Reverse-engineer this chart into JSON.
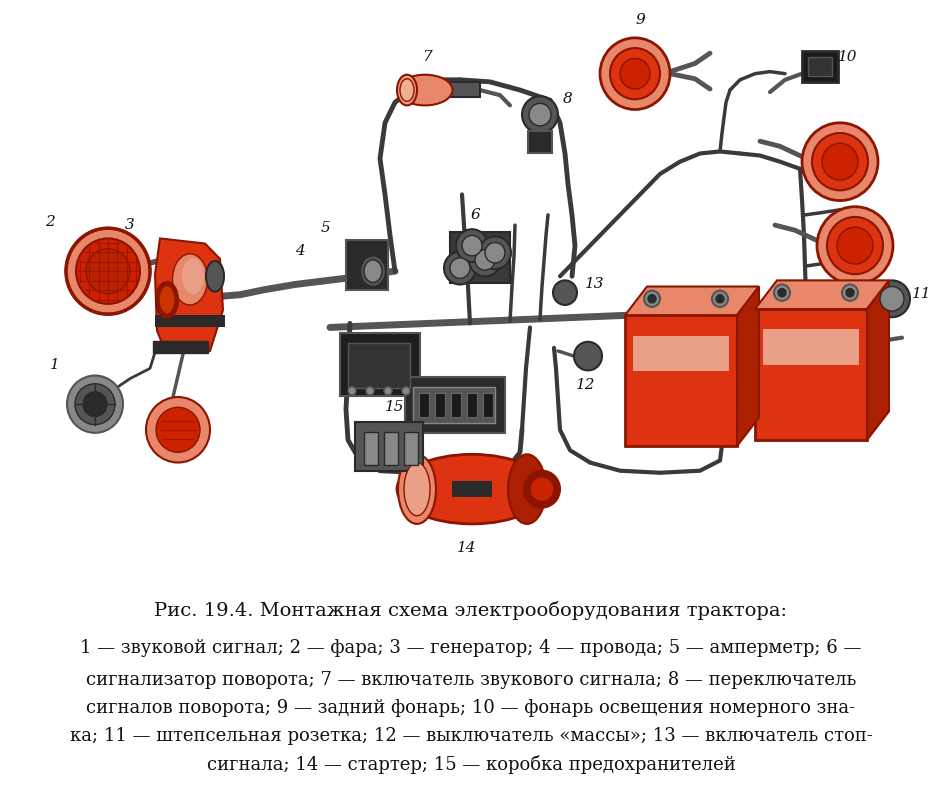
{
  "title": "Рис. 19.4. Монтажная схема электрооборудования трактора:",
  "caption_lines": [
    "— звуковой сигнал; — фара; — генератор; — провода; — амперметр; —",
    "сигнализатор поворота; — включатель звукового сигнала; — переключатель",
    "сигналов поворота; — задний фонарь; — фонарь освещения номерного зна-",
    "ка; — штепсельная розетка; — выключатель «массы»; — включатель стоп-",
    "сигнала; — стартер; — коробка предохранителей"
  ],
  "caption_numbers": [
    "1",
    "2",
    "3",
    "4",
    "5",
    "6",
    "7",
    "8",
    "9",
    "10",
    "11",
    "12",
    "13",
    "14",
    "15"
  ],
  "bg_color": "#ffffff",
  "title_fontsize": 14,
  "caption_fontsize": 13,
  "fig_width": 9.43,
  "fig_height": 7.99,
  "dpi": 100
}
